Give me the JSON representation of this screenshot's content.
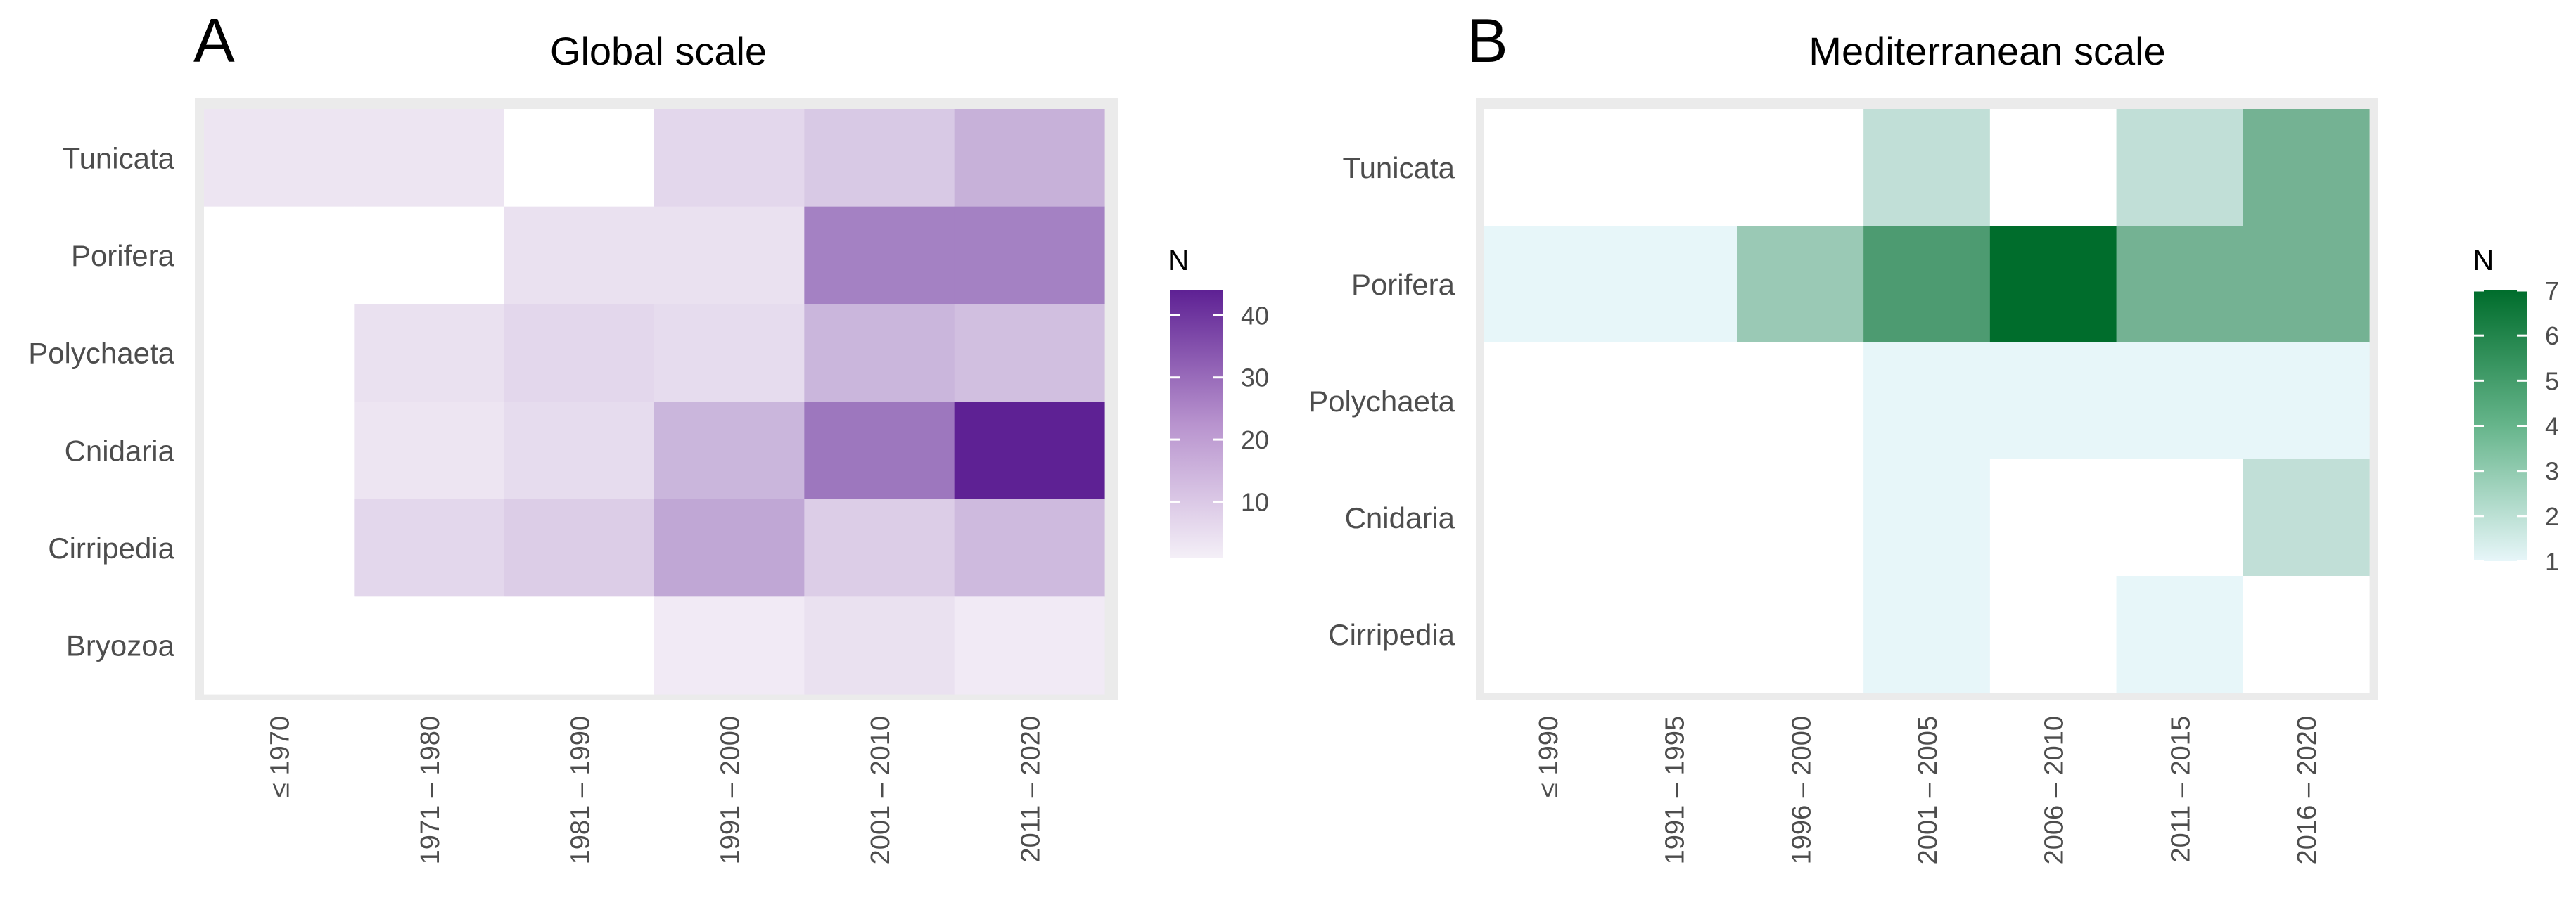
{
  "chart_data": [
    {
      "type": "heatmap",
      "panel_label": "A",
      "title": "Global scale",
      "xlabel": "",
      "ylabel": "",
      "x_categories": [
        "≤ 1970",
        "1971 – 1980",
        "1981 – 1990",
        "1991 – 2000",
        "2001 – 2010",
        "2011 – 2020"
      ],
      "y_categories": [
        "Tunicata",
        "Porifera",
        "Polychaeta",
        "Cnidaria",
        "Cirripedia",
        "Bryozoa"
      ],
      "values": [
        [
          3,
          3,
          null,
          6,
          9,
          14
        ],
        [
          null,
          null,
          4,
          4,
          24,
          24
        ],
        [
          null,
          4,
          6,
          5,
          13,
          11
        ],
        [
          null,
          3,
          5,
          13,
          26,
          44
        ],
        [
          null,
          6,
          8,
          16,
          8,
          12
        ],
        [
          null,
          null,
          null,
          2,
          4,
          2
        ]
      ],
      "legend": {
        "title": "N",
        "ticks": [
          10,
          20,
          30,
          40
        ],
        "range": [
          1,
          44
        ],
        "low_color": "#f4eff7",
        "high_color": "#5e2194"
      }
    },
    {
      "type": "heatmap",
      "panel_label": "B",
      "title": "Mediterranean scale",
      "xlabel": "",
      "ylabel": "",
      "x_categories": [
        "≤ 1990",
        "1991 – 1995",
        "1996 – 2000",
        "2001 – 2005",
        "2006 – 2010",
        "2011 – 2015",
        "2016 – 2020"
      ],
      "y_categories": [
        "Tunicata",
        "Porifera",
        "Polychaeta",
        "Cnidaria",
        "Cirripedia"
      ],
      "values": [
        [
          null,
          null,
          null,
          2,
          null,
          2,
          4
        ],
        [
          1,
          1,
          3,
          5,
          7,
          4,
          4
        ],
        [
          null,
          null,
          null,
          1,
          1,
          1,
          1
        ],
        [
          null,
          null,
          null,
          1,
          null,
          null,
          2
        ],
        [
          null,
          null,
          null,
          1,
          null,
          1,
          null
        ]
      ],
      "legend": {
        "title": "N",
        "ticks": [
          1,
          2,
          3,
          4,
          5,
          6,
          7
        ],
        "range": [
          1,
          7
        ],
        "low_color": "#e7f6f9",
        "high_color": "#006d2c"
      }
    }
  ]
}
